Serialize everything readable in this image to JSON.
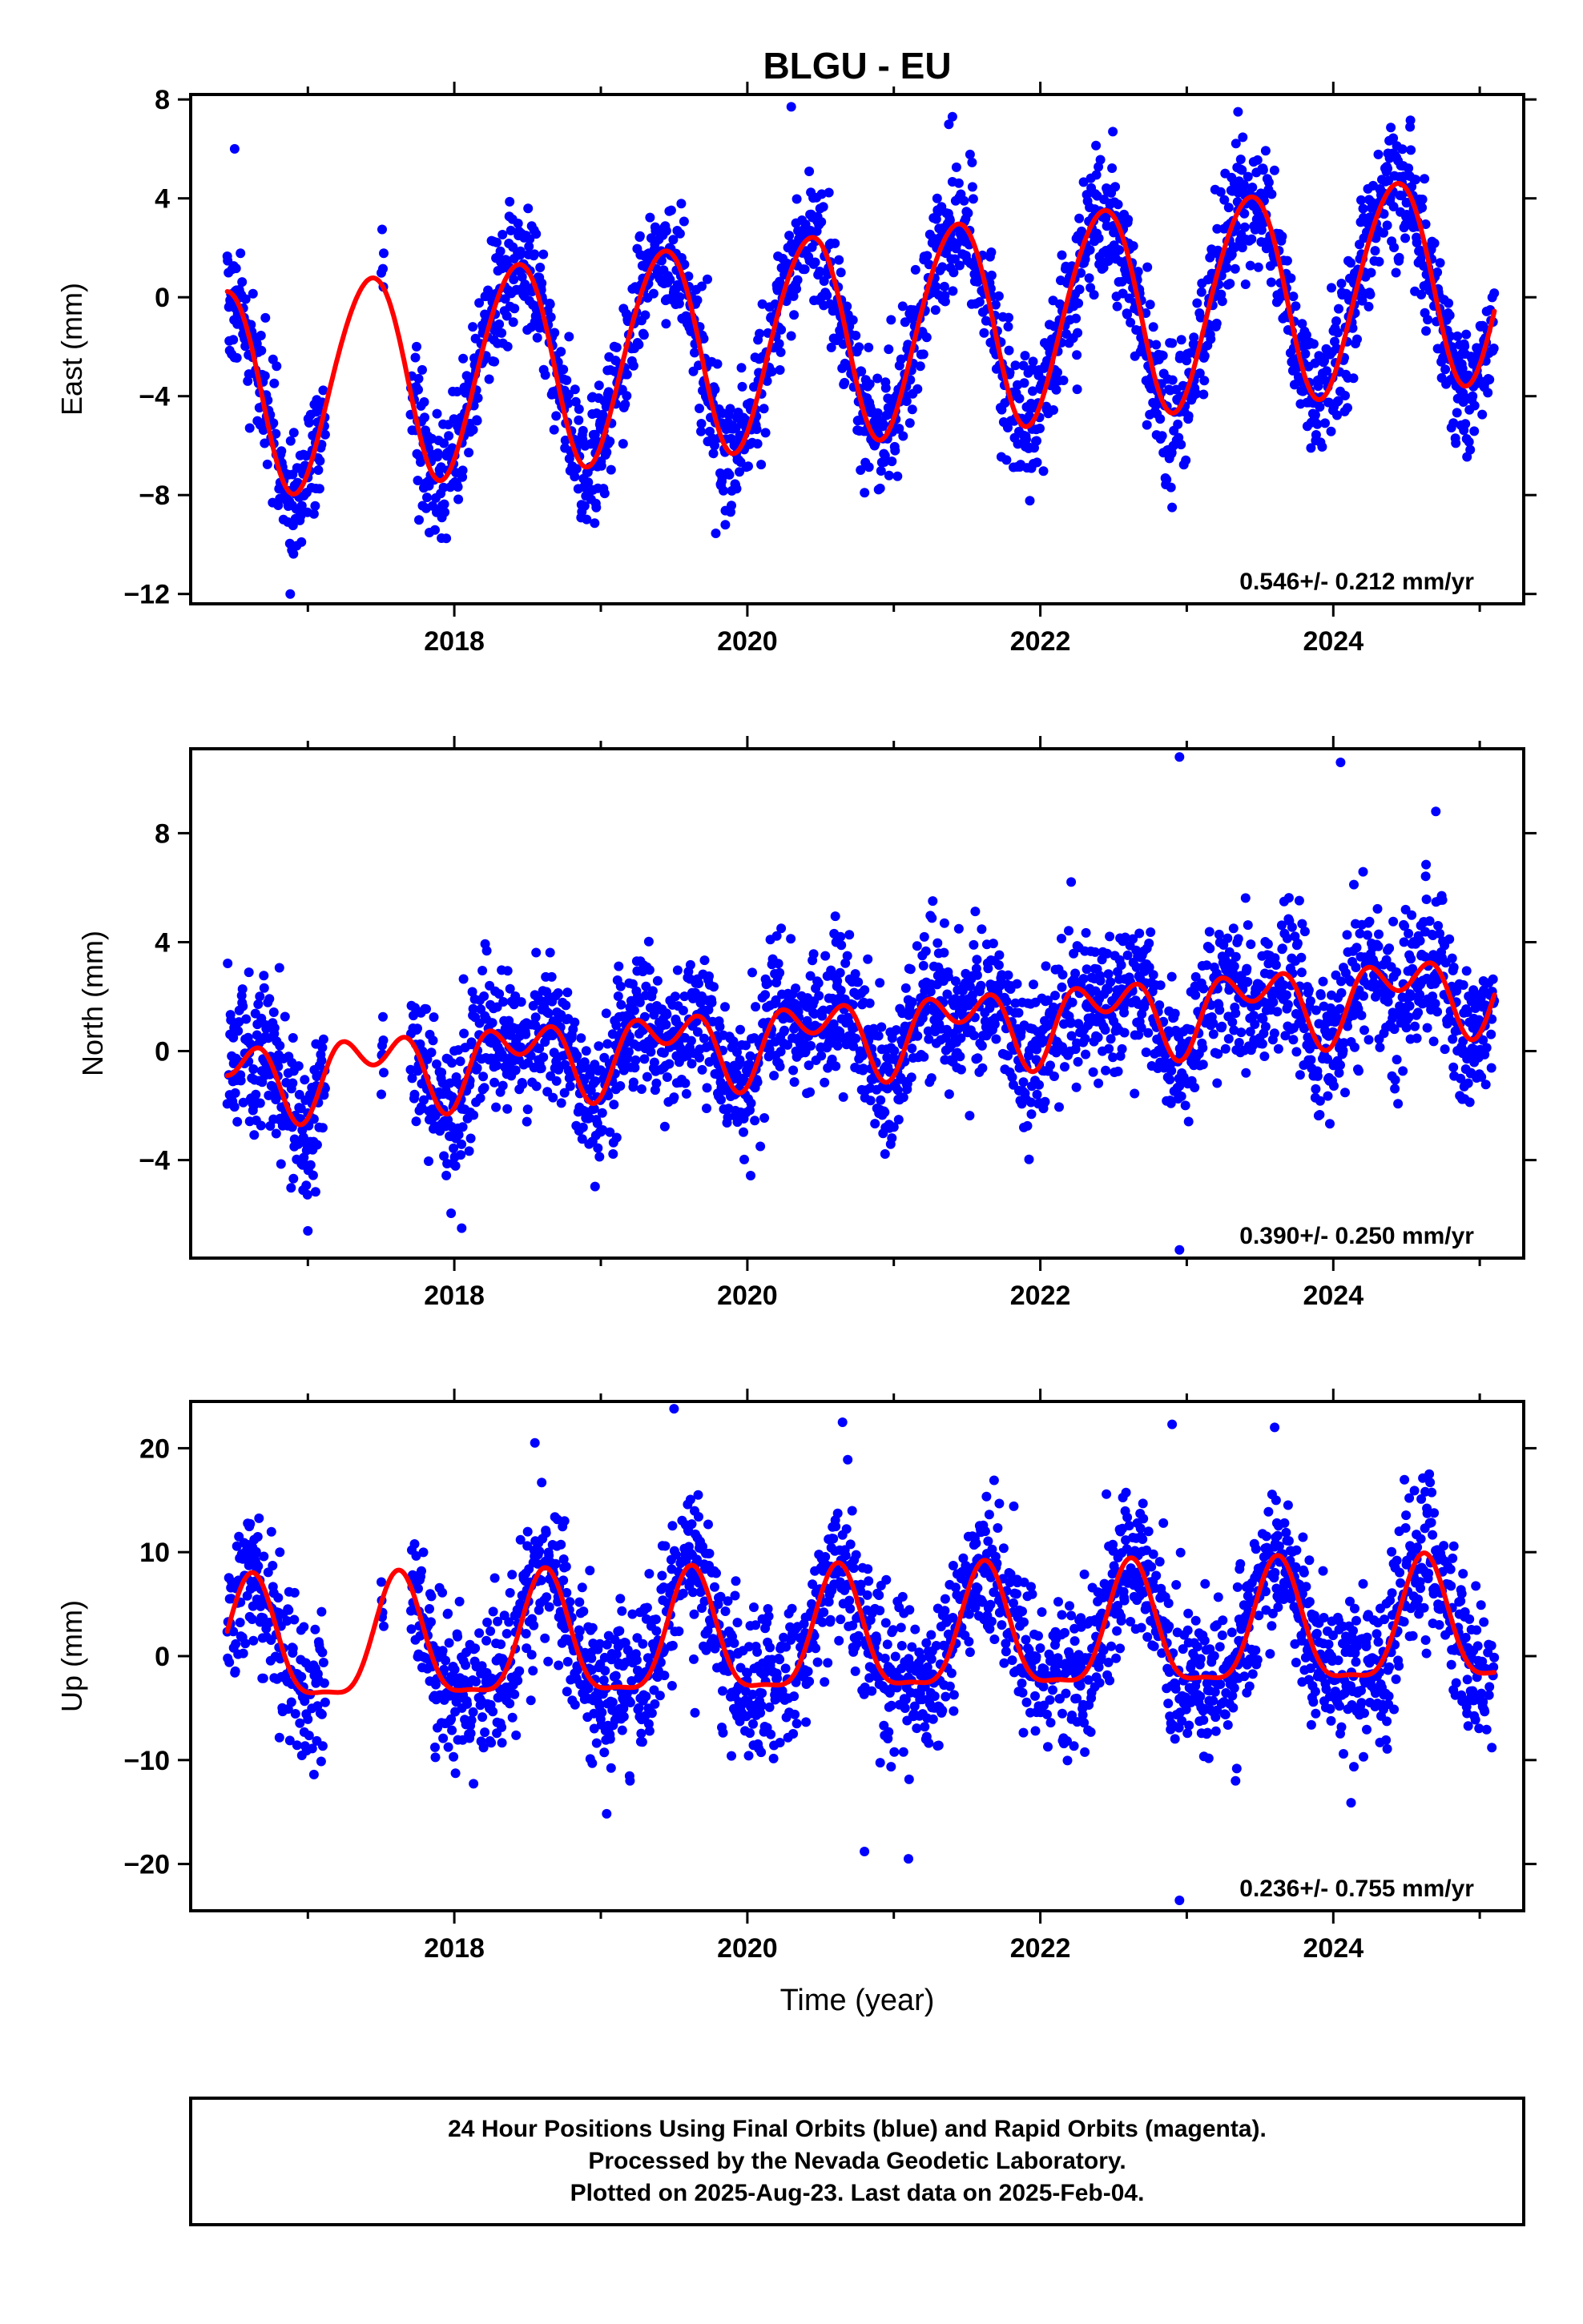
{
  "title": "BLGU - EU",
  "xlabel": "Time (year)",
  "footer": [
    "24 Hour Positions Using Final Orbits (blue) and Rapid Orbits (magenta).",
    "Processed by the Nevada Geodetic Laboratory.",
    "Plotted on 2025-Aug-23. Last data on 2025-Feb-04."
  ],
  "colors": {
    "points": "#0000ff",
    "fit": "#ff0000",
    "frame": "#000000"
  },
  "chart_data": [
    {
      "type": "scatter",
      "ylabel": "East (mm)",
      "xlim": [
        2016.2,
        2025.3
      ],
      "ylim": [
        -12.4,
        8.2
      ],
      "xticks": [
        2018,
        2020,
        2022,
        2024
      ],
      "yticks": [
        -12,
        -8,
        -4,
        0,
        4,
        8
      ],
      "yticklabels": [
        "−12",
        "−8",
        "−4",
        "0",
        "4",
        "8"
      ],
      "rate_text": "0.546+/- 0.212 mm/yr",
      "trend_mm_per_yr": 0.546,
      "model": {
        "t0": 2016.45,
        "offset": -3.8,
        "annual_amp": 4.2,
        "annual_peak": 0.42,
        "semiannual_amp": 0.3,
        "semiannual_peak": 0.1
      },
      "scatter_sd": 1.3,
      "data_start": 2016.45,
      "data_end": 2025.1,
      "gaps": [
        [
          2017.12,
          2017.5
        ],
        [
          2017.52,
          2017.7
        ]
      ],
      "outliers": [
        {
          "x": 2016.88,
          "y": -12.0
        },
        {
          "x": 2019.85,
          "y": -9.2
        },
        {
          "x": 2022.9,
          "y": -8.5
        },
        {
          "x": 2020.3,
          "y": 7.7
        },
        {
          "x": 2021.4,
          "y": 7.3
        },
        {
          "x": 2023.35,
          "y": 7.5
        },
        {
          "x": 2016.5,
          "y": 6.0
        }
      ],
      "series": [
        {
          "name": "24 Hour Positions (final orbits)",
          "style": "points"
        },
        {
          "name": "Model fit",
          "style": "line"
        }
      ]
    },
    {
      "type": "scatter",
      "ylabel": "North (mm)",
      "xlim": [
        2016.2,
        2025.3
      ],
      "ylim": [
        -7.6,
        11.1
      ],
      "xticks": [
        2018,
        2020,
        2022,
        2024
      ],
      "yticks": [
        -4,
        0,
        4,
        8
      ],
      "yticklabels": [
        "−4",
        "0",
        "4",
        "8"
      ],
      "rate_text": "0.390+/- 0.250 mm/yr",
      "trend_mm_per_yr": 0.39,
      "model": {
        "t0": 2016.45,
        "offset": -1.0,
        "annual_amp": 1.0,
        "annual_peak": 0.45,
        "semiannual_amp": 0.9,
        "semiannual_peak": 0.2
      },
      "scatter_sd": 1.3,
      "data_start": 2016.45,
      "data_end": 2025.1,
      "gaps": [
        [
          2017.12,
          2017.5
        ],
        [
          2017.52,
          2017.7
        ]
      ],
      "outliers": [
        {
          "x": 2022.95,
          "y": 10.8
        },
        {
          "x": 2024.05,
          "y": 10.6
        },
        {
          "x": 2024.7,
          "y": 8.8
        },
        {
          "x": 2022.95,
          "y": -7.3
        },
        {
          "x": 2018.05,
          "y": -6.5
        },
        {
          "x": 2017.0,
          "y": -6.6
        }
      ],
      "series": [
        {
          "name": "24 Hour Positions (final orbits)",
          "style": "points"
        },
        {
          "name": "Model fit",
          "style": "line"
        }
      ]
    },
    {
      "type": "scatter",
      "ylabel": "Up (mm)",
      "xlim": [
        2016.2,
        2025.3
      ],
      "ylim": [
        -24.5,
        24.5
      ],
      "xticks": [
        2018,
        2020,
        2022,
        2024
      ],
      "yticks": [
        -20,
        -10,
        0,
        10,
        20
      ],
      "yticklabels": [
        "−20",
        "−10",
        "0",
        "10",
        "20"
      ],
      "rate_text": "0.236+/- 0.755 mm/yr",
      "trend_mm_per_yr": 0.236,
      "model": {
        "t0": 2016.45,
        "offset": 0.5,
        "annual_amp": 5.8,
        "annual_peak": 0.62,
        "semiannual_amp": 1.7,
        "semiannual_peak": 0.62
      },
      "scatter_sd": 3.6,
      "data_start": 2016.45,
      "data_end": 2025.1,
      "gaps": [
        [
          2017.12,
          2017.5
        ],
        [
          2017.52,
          2017.7
        ]
      ],
      "outliers": [
        {
          "x": 2019.5,
          "y": 23.8
        },
        {
          "x": 2020.65,
          "y": 22.5
        },
        {
          "x": 2022.9,
          "y": 22.3
        },
        {
          "x": 2023.6,
          "y": 22.0
        },
        {
          "x": 2022.95,
          "y": -23.5
        },
        {
          "x": 2021.1,
          "y": -19.5
        },
        {
          "x": 2020.8,
          "y": -18.8
        }
      ],
      "series": [
        {
          "name": "24 Hour Positions (final orbits)",
          "style": "points"
        },
        {
          "name": "Model fit",
          "style": "line"
        }
      ]
    }
  ]
}
